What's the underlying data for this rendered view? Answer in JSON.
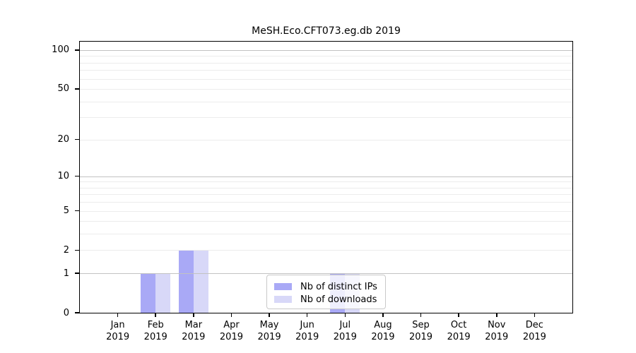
{
  "chart_data": {
    "type": "bar",
    "title": "MeSH.Eco.CFT073.eg.db 2019",
    "categories": [
      "Jan",
      "Feb",
      "Mar",
      "Apr",
      "May",
      "Jun",
      "Jul",
      "Aug",
      "Sep",
      "Oct",
      "Nov",
      "Dec"
    ],
    "category_year_label": "2019",
    "series": [
      {
        "name": "Nb of distinct IPs",
        "color": "#a9a9f6",
        "values": [
          0,
          1,
          2,
          0,
          0,
          0,
          1,
          0,
          0,
          0,
          0,
          0
        ]
      },
      {
        "name": "Nb of downloads",
        "color": "#d8d8f8",
        "values": [
          0,
          1,
          2,
          0,
          0,
          0,
          1,
          0,
          0,
          0,
          0,
          0
        ]
      }
    ],
    "yscale": "log1p",
    "ylim": [
      0,
      116
    ],
    "yticks": [
      0,
      1,
      2,
      5,
      10,
      20,
      50,
      100
    ],
    "major_gridlines": [
      1,
      10,
      100
    ],
    "minor_gridlines": [
      2,
      3,
      4,
      5,
      6,
      7,
      8,
      9,
      20,
      30,
      40,
      50,
      60,
      70,
      80,
      90
    ],
    "grid": "horizontal",
    "legend_position": "lower center",
    "colors": {
      "axis": "#000000",
      "grid_major": "#c2c2c2",
      "grid_minor": "#ececec",
      "background": "#ffffff"
    }
  }
}
